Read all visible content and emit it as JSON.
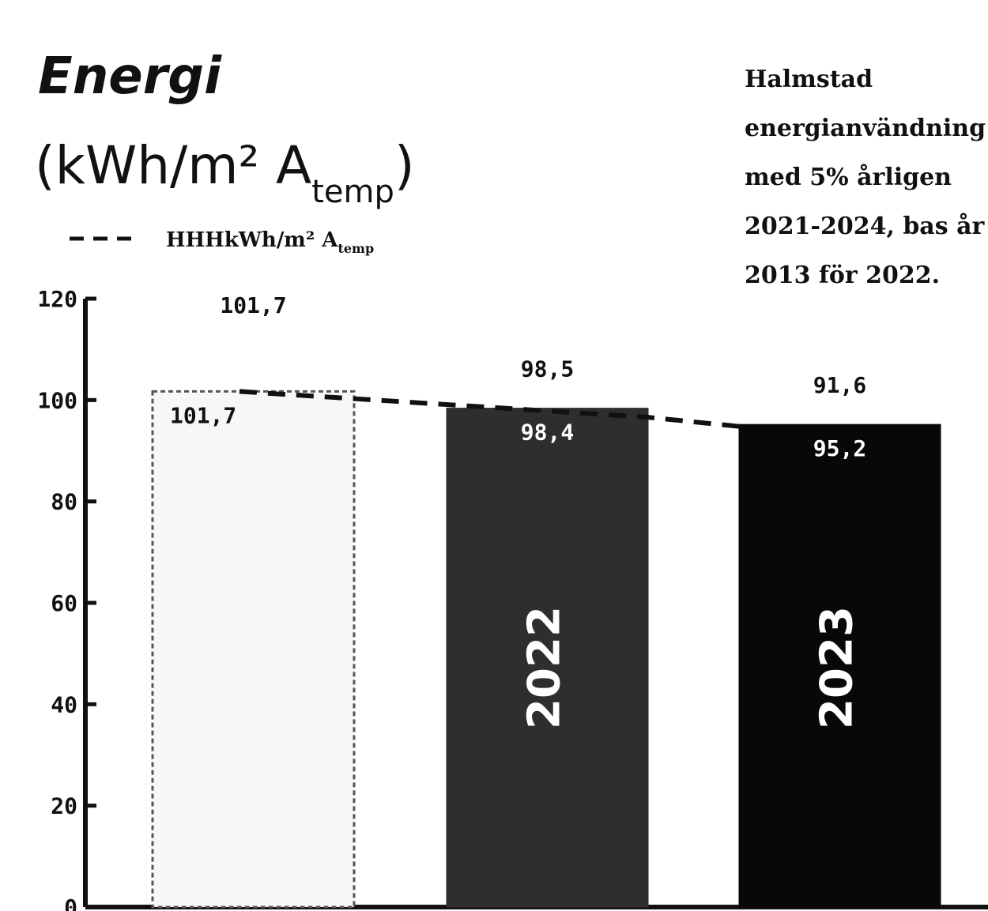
{
  "title": {
    "main": "Energi",
    "unit_prefix": "(kWh/m² A",
    "unit_sub": "temp",
    "unit_suffix": ")"
  },
  "legend": {
    "target_line_label": "HHHkWh/m² A",
    "target_line_sub": "temp",
    "position": "top-left"
  },
  "note_lines": [
    "Halmstad",
    "energianvändning",
    "med 5% årligen",
    "2021-2024, bas år",
    "2013 för 2022."
  ],
  "chart_data": {
    "type": "bar",
    "title": "Energi (kWh/m² Atemp)",
    "ylabel": "",
    "xlabel": "",
    "ylim": [
      0,
      120
    ],
    "yticks": [
      0,
      20,
      40,
      60,
      80,
      100,
      120
    ],
    "grid": false,
    "categories": [
      "",
      "2022",
      "2023"
    ],
    "series": [
      {
        "values": [
          101.7,
          98.4,
          95.2
        ],
        "value_labels": [
          "101,7",
          "98,4",
          "95,2"
        ],
        "colors": [
          "#f7f7f7",
          "#2e2e2e",
          "#080808"
        ],
        "label_colors": [
          "#111111",
          "#ffffff",
          "#ffffff"
        ]
      }
    ],
    "top_labels": [
      "101,7",
      "98,5",
      "91,6"
    ],
    "target_line": {
      "style": "dashed",
      "values": [
        101.7,
        96.6,
        94.8
      ]
    },
    "colors": {
      "axis": "#111111",
      "target_line": "#111111"
    }
  }
}
